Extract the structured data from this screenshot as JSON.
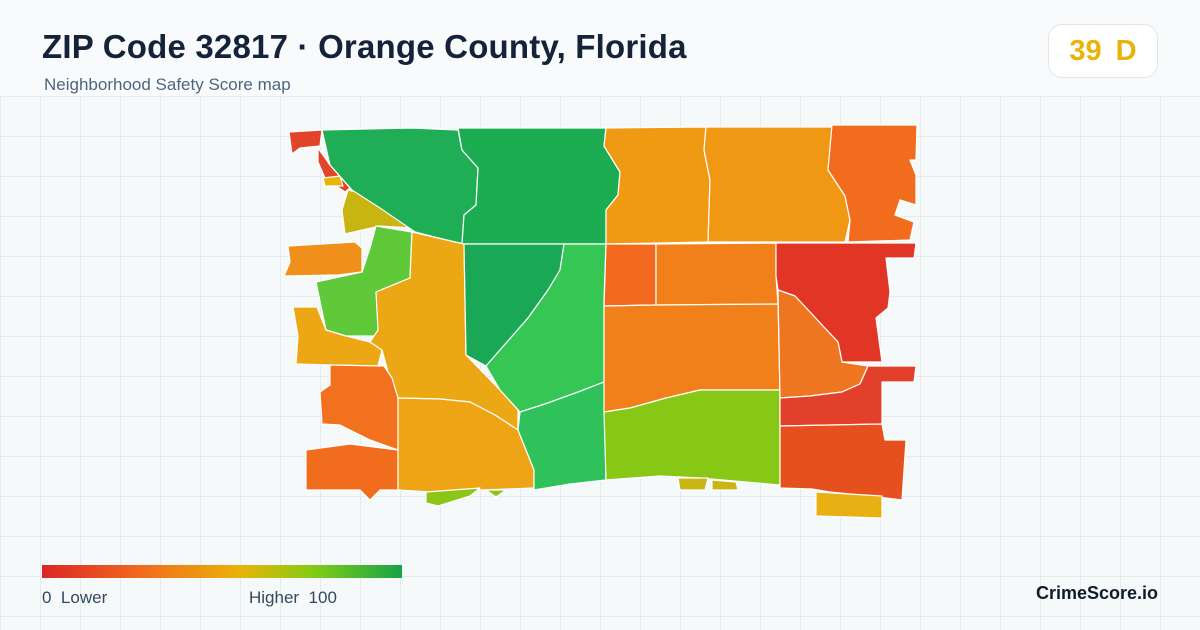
{
  "header": {
    "title": "ZIP Code 32817 · Orange County, Florida",
    "subtitle": "Neighborhood Safety Score map"
  },
  "score": {
    "value": "39",
    "grade": "D",
    "color": "#eab308"
  },
  "legend": {
    "low_value": "0",
    "low_label": "Lower",
    "high_label": "Higher",
    "high_value": "100",
    "colors": [
      "#dc2626",
      "#f2711c",
      "#eab308",
      "#84cc16",
      "#16a34a"
    ]
  },
  "brand": "CrimeScore.io"
}
